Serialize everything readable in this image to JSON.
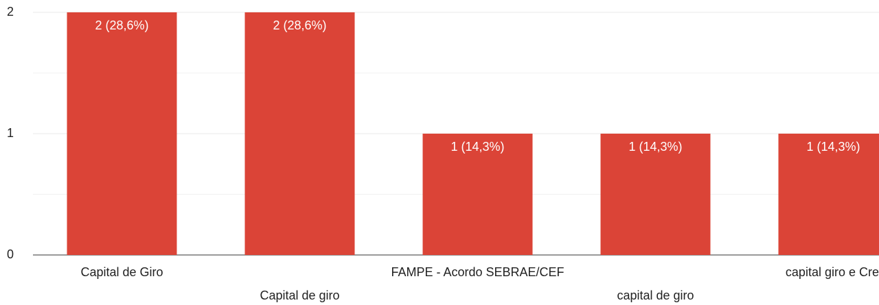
{
  "chart_data": {
    "type": "bar",
    "categories": [
      "Capital de Giro",
      "Capital de giro",
      "FAMPE - Acordo SEBRAE/CEF",
      "capital de giro",
      "capital giro e Cre"
    ],
    "values": [
      2,
      2,
      1,
      1,
      1
    ],
    "value_labels": [
      "2 (28,6%)",
      "2 (28,6%)",
      "1 (14,3%)",
      "1 (14,3%)",
      "1 (14,3%)"
    ],
    "color": "#db4437",
    "ylim": [
      0,
      2
    ],
    "yticks": [
      0,
      1,
      2
    ],
    "minor_yticks": [
      0.5,
      1.5
    ],
    "grid": true
  }
}
